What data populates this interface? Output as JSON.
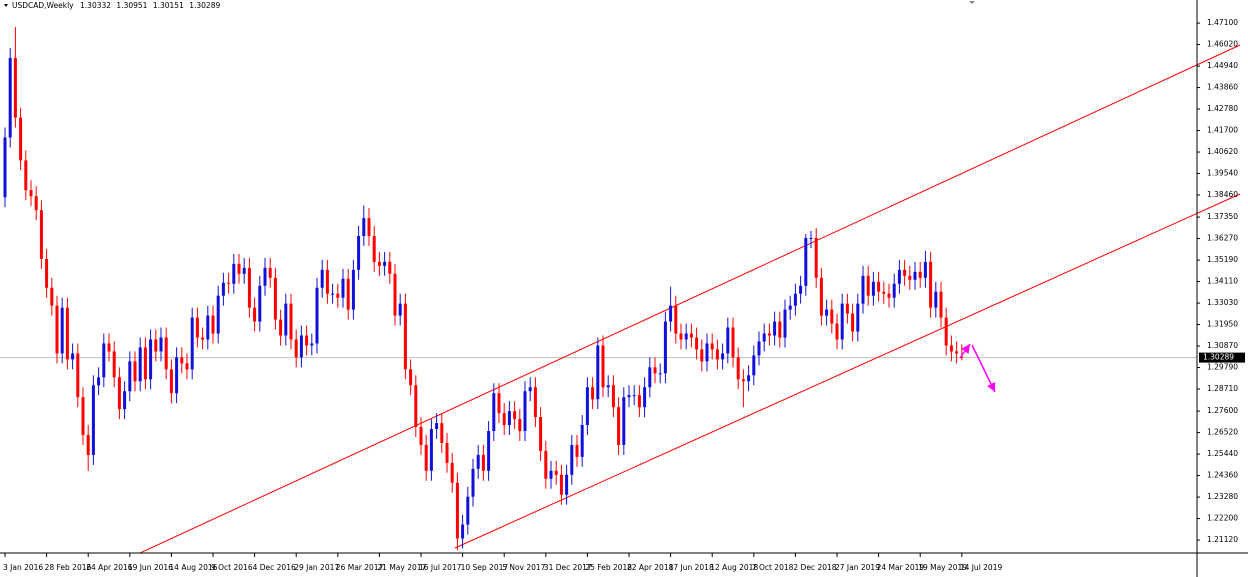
{
  "chart_data": {
    "type": "candlestick",
    "title": "USDCAD,Weekly",
    "up_color": "#1010d8",
    "down_color": "#ff0000",
    "ylim": [
      1.2052,
      1.4816
    ],
    "yticks": [
      {
        "value": 1.471,
        "label": "1.47100"
      },
      {
        "value": 1.4602,
        "label": "1.46020"
      },
      {
        "value": 1.4494,
        "label": "1.44940"
      },
      {
        "value": 1.4386,
        "label": "1.43860"
      },
      {
        "value": 1.4278,
        "label": "1.42780"
      },
      {
        "value": 1.417,
        "label": "1.41700"
      },
      {
        "value": 1.4062,
        "label": "1.40620"
      },
      {
        "value": 1.3954,
        "label": "1.39540"
      },
      {
        "value": 1.3846,
        "label": "1.38460"
      },
      {
        "value": 1.3735,
        "label": "1.37350"
      },
      {
        "value": 1.3627,
        "label": "1.36270"
      },
      {
        "value": 1.3519,
        "label": "1.35190"
      },
      {
        "value": 1.3411,
        "label": "1.34110"
      },
      {
        "value": 1.3303,
        "label": "1.33030"
      },
      {
        "value": 1.3195,
        "label": "1.31950"
      },
      {
        "value": 1.3087,
        "label": "1.30870"
      },
      {
        "value": 1.2979,
        "label": "1.29790"
      },
      {
        "value": 1.2871,
        "label": "1.28710"
      },
      {
        "value": 1.276,
        "label": "1.27600"
      },
      {
        "value": 1.2652,
        "label": "1.26520"
      },
      {
        "value": 1.2544,
        "label": "1.25440"
      },
      {
        "value": 1.2436,
        "label": "1.24360"
      },
      {
        "value": 1.2328,
        "label": "1.23280"
      },
      {
        "value": 1.222,
        "label": "1.22200"
      },
      {
        "value": 1.2112,
        "label": "1.21120"
      }
    ],
    "categories": [
      "3 Jan 2016",
      null,
      null,
      null,
      null,
      null,
      null,
      null,
      "28 Feb 2016",
      null,
      null,
      null,
      null,
      null,
      null,
      null,
      "24 Apr 2016",
      null,
      null,
      null,
      null,
      null,
      null,
      null,
      "19 Jun 2016",
      null,
      null,
      null,
      null,
      null,
      null,
      null,
      "14 Aug 2016",
      null,
      null,
      null,
      null,
      null,
      null,
      null,
      "9 Oct 2016",
      null,
      null,
      null,
      null,
      null,
      null,
      null,
      "4 Dec 2016",
      null,
      null,
      null,
      null,
      null,
      null,
      null,
      "29 Jan 2017",
      null,
      null,
      null,
      null,
      null,
      null,
      null,
      "26 Mar 2017",
      null,
      null,
      null,
      null,
      null,
      null,
      null,
      "21 May 2017",
      null,
      null,
      null,
      null,
      null,
      null,
      null,
      "16 Jul 2017",
      null,
      null,
      null,
      null,
      null,
      null,
      null,
      "10 Sep 2017",
      null,
      null,
      null,
      null,
      null,
      null,
      null,
      "5 Nov 2017",
      null,
      null,
      null,
      null,
      null,
      null,
      null,
      "31 Dec 2017",
      null,
      null,
      null,
      null,
      null,
      null,
      null,
      "25 Feb 2018",
      null,
      null,
      null,
      null,
      null,
      null,
      null,
      "22 Apr 2018",
      null,
      null,
      null,
      null,
      null,
      null,
      null,
      "17 Jun 2018",
      null,
      null,
      null,
      null,
      null,
      null,
      null,
      "12 Aug 2018",
      null,
      null,
      null,
      null,
      null,
      null,
      null,
      "7 Oct 2018",
      null,
      null,
      null,
      null,
      null,
      null,
      null,
      "2 Dec 2018",
      null,
      null,
      null,
      null,
      null,
      null,
      null,
      "27 Jan 2019",
      null,
      null,
      null,
      null,
      null,
      null,
      null,
      "24 Mar 2019",
      null,
      null,
      null,
      null,
      null,
      null,
      null,
      "19 May 2019",
      null,
      null,
      null,
      null,
      null,
      null,
      null,
      "14 Jul 2019"
    ],
    "open": [
      1.3835,
      1.4135,
      1.4535,
      1.4235,
      1.402,
      1.387,
      1.384,
      1.377,
      1.3525,
      1.338,
      1.329,
      1.305,
      1.328,
      1.302,
      1.305,
      1.283,
      1.264,
      1.254,
      1.289,
      1.293,
      1.31,
      1.306,
      1.293,
      1.277,
      1.286,
      1.301,
      1.291,
      1.308,
      1.292,
      1.312,
      1.306,
      1.313,
      1.297,
      1.285,
      1.303,
      1.3,
      1.297,
      1.323,
      1.313,
      1.312,
      1.324,
      1.315,
      1.334,
      1.3405,
      1.34,
      1.35,
      1.345,
      1.348,
      1.328,
      1.321,
      1.339,
      1.348,
      1.343,
      1.322,
      1.314,
      1.33,
      1.312,
      1.303,
      1.314,
      1.309,
      1.31,
      1.338,
      1.347,
      1.335,
      1.335,
      1.333,
      1.3425,
      1.327,
      1.347,
      1.364,
      1.373,
      1.364,
      1.351,
      1.349,
      1.351,
      1.345,
      1.324,
      1.33,
      1.297,
      1.289,
      1.268,
      1.259,
      1.246,
      1.267,
      1.27,
      1.26,
      1.25,
      1.24,
      1.212,
      1.219,
      1.233,
      1.247,
      1.254,
      1.246,
      1.266,
      1.285,
      1.275,
      1.269,
      1.276,
      1.272,
      1.266,
      1.286,
      1.288,
      1.273,
      1.256,
      1.242,
      1.246,
      1.244,
      1.234,
      1.244,
      1.259,
      1.253,
      1.269,
      1.288,
      1.282,
      1.309,
      1.288,
      1.289,
      1.278,
      1.259,
      1.283,
      1.284,
      1.284,
      1.278,
      1.288,
      1.298,
      1.295,
      1.295,
      1.321,
      1.329,
      1.315,
      1.312,
      1.315,
      1.313,
      1.307,
      1.301,
      1.31,
      1.307,
      1.302,
      1.305,
      1.318,
      1.303,
      1.292,
      1.291,
      1.294,
      1.304,
      1.311,
      1.315,
      1.314,
      1.321,
      1.313,
      1.327,
      1.329,
      1.335,
      1.339,
      1.363,
      1.363,
      1.343,
      1.324,
      1.327,
      1.32,
      1.312,
      1.33,
      1.325,
      1.316,
      1.33,
      1.344,
      1.334,
      1.341,
      1.336,
      1.335,
      1.333,
      1.34,
      1.347,
      1.344,
      1.342,
      1.346,
      1.343,
      1.351,
      1.328,
      1.336,
      1.323,
      1.309,
      1.306,
      1.30332
    ],
    "high": [
      1.4185,
      1.4585,
      1.469,
      1.4285,
      1.407,
      1.392,
      1.389,
      1.382,
      1.3575,
      1.343,
      1.334,
      1.333,
      1.333,
      1.31,
      1.31,
      1.288,
      1.269,
      1.294,
      1.298,
      1.315,
      1.315,
      1.311,
      1.298,
      1.291,
      1.306,
      1.306,
      1.313,
      1.313,
      1.317,
      1.317,
      1.318,
      1.318,
      1.302,
      1.308,
      1.308,
      1.305,
      1.328,
      1.328,
      1.318,
      1.329,
      1.329,
      1.339,
      1.3455,
      1.3455,
      1.355,
      1.355,
      1.353,
      1.353,
      1.333,
      1.344,
      1.353,
      1.353,
      1.348,
      1.327,
      1.335,
      1.335,
      1.317,
      1.319,
      1.319,
      1.315,
      1.343,
      1.352,
      1.352,
      1.34,
      1.34,
      1.3475,
      1.3475,
      1.352,
      1.369,
      1.3793,
      1.378,
      1.369,
      1.356,
      1.356,
      1.356,
      1.35,
      1.335,
      1.335,
      1.302,
      1.294,
      1.273,
      1.264,
      1.272,
      1.275,
      1.275,
      1.265,
      1.255,
      1.245,
      1.224,
      1.238,
      1.252,
      1.259,
      1.259,
      1.271,
      1.29,
      1.29,
      1.28,
      1.281,
      1.281,
      1.277,
      1.291,
      1.293,
      1.293,
      1.278,
      1.261,
      1.251,
      1.251,
      1.249,
      1.249,
      1.264,
      1.264,
      1.274,
      1.293,
      1.293,
      1.313,
      1.314,
      1.294,
      1.294,
      1.283,
      1.288,
      1.289,
      1.289,
      1.289,
      1.293,
      1.303,
      1.303,
      1.3,
      1.326,
      1.3385,
      1.334,
      1.32,
      1.32,
      1.32,
      1.318,
      1.312,
      1.315,
      1.315,
      1.312,
      1.31,
      1.323,
      1.323,
      1.308,
      1.297,
      1.299,
      1.309,
      1.316,
      1.32,
      1.32,
      1.326,
      1.326,
      1.332,
      1.334,
      1.34,
      1.344,
      1.365,
      1.3665,
      1.368,
      1.348,
      1.332,
      1.332,
      1.325,
      1.335,
      1.335,
      1.33,
      1.335,
      1.349,
      1.349,
      1.346,
      1.346,
      1.341,
      1.34,
      1.345,
      1.352,
      1.352,
      1.349,
      1.351,
      1.351,
      1.3565,
      1.356,
      1.341,
      1.341,
      1.328,
      1.314,
      1.311,
      1.30951
    ],
    "low": [
      1.3785,
      1.4085,
      1.4185,
      1.397,
      1.382,
      1.379,
      1.372,
      1.3475,
      1.333,
      1.324,
      1.3,
      1.3,
      1.297,
      1.297,
      1.278,
      1.259,
      1.246,
      1.249,
      1.284,
      1.288,
      1.301,
      1.288,
      1.272,
      1.272,
      1.281,
      1.286,
      1.286,
      1.287,
      1.287,
      1.301,
      1.301,
      1.292,
      1.28,
      1.28,
      1.295,
      1.292,
      1.292,
      1.308,
      1.307,
      1.307,
      1.31,
      1.31,
      1.329,
      1.335,
      1.335,
      1.34,
      1.34,
      1.323,
      1.316,
      1.316,
      1.334,
      1.338,
      1.317,
      1.309,
      1.309,
      1.307,
      1.298,
      1.298,
      1.304,
      1.304,
      1.305,
      1.333,
      1.33,
      1.33,
      1.328,
      1.328,
      1.322,
      1.322,
      1.342,
      1.359,
      1.359,
      1.346,
      1.344,
      1.344,
      1.34,
      1.319,
      1.319,
      1.292,
      1.284,
      1.263,
      1.254,
      1.241,
      1.241,
      1.262,
      1.255,
      1.245,
      1.235,
      1.2061,
      1.207,
      1.214,
      1.228,
      1.242,
      1.241,
      1.241,
      1.261,
      1.27,
      1.264,
      1.264,
      1.267,
      1.261,
      1.261,
      1.281,
      1.268,
      1.251,
      1.237,
      1.237,
      1.239,
      1.229,
      1.229,
      1.239,
      1.248,
      1.248,
      1.264,
      1.277,
      1.277,
      1.283,
      1.283,
      1.273,
      1.254,
      1.254,
      1.278,
      1.279,
      1.273,
      1.273,
      1.283,
      1.29,
      1.29,
      1.29,
      1.316,
      1.31,
      1.307,
      1.307,
      1.308,
      1.302,
      1.296,
      1.296,
      1.302,
      1.297,
      1.297,
      1.3,
      1.298,
      1.287,
      1.278,
      1.286,
      1.289,
      1.299,
      1.306,
      1.309,
      1.309,
      1.308,
      1.308,
      1.322,
      1.324,
      1.33,
      1.334,
      1.358,
      1.338,
      1.319,
      1.319,
      1.315,
      1.307,
      1.307,
      1.32,
      1.311,
      1.311,
      1.325,
      1.329,
      1.329,
      1.331,
      1.33,
      1.328,
      1.328,
      1.335,
      1.339,
      1.337,
      1.337,
      1.338,
      1.338,
      1.323,
      1.323,
      1.318,
      1.304,
      1.301,
      1.3,
      1.30151
    ],
    "close": [
      1.4135,
      1.4535,
      1.4235,
      1.402,
      1.387,
      1.384,
      1.377,
      1.3525,
      1.338,
      1.329,
      1.305,
      1.328,
      1.302,
      1.305,
      1.283,
      1.264,
      1.254,
      1.289,
      1.293,
      1.31,
      1.306,
      1.293,
      1.277,
      1.286,
      1.301,
      1.291,
      1.308,
      1.292,
      1.312,
      1.306,
      1.313,
      1.297,
      1.285,
      1.303,
      1.3,
      1.297,
      1.323,
      1.313,
      1.312,
      1.324,
      1.315,
      1.334,
      1.3405,
      1.34,
      1.35,
      1.345,
      1.348,
      1.328,
      1.321,
      1.339,
      1.348,
      1.343,
      1.322,
      1.314,
      1.33,
      1.312,
      1.303,
      1.314,
      1.309,
      1.31,
      1.338,
      1.347,
      1.335,
      1.335,
      1.333,
      1.3425,
      1.327,
      1.347,
      1.364,
      1.373,
      1.364,
      1.351,
      1.349,
      1.351,
      1.345,
      1.324,
      1.33,
      1.297,
      1.289,
      1.268,
      1.259,
      1.246,
      1.267,
      1.27,
      1.26,
      1.25,
      1.24,
      1.212,
      1.219,
      1.233,
      1.247,
      1.254,
      1.246,
      1.266,
      1.285,
      1.275,
      1.269,
      1.276,
      1.272,
      1.266,
      1.286,
      1.288,
      1.273,
      1.256,
      1.242,
      1.246,
      1.244,
      1.234,
      1.244,
      1.259,
      1.253,
      1.269,
      1.288,
      1.282,
      1.309,
      1.288,
      1.289,
      1.278,
      1.259,
      1.283,
      1.284,
      1.284,
      1.278,
      1.288,
      1.298,
      1.295,
      1.295,
      1.321,
      1.329,
      1.315,
      1.312,
      1.315,
      1.313,
      1.307,
      1.301,
      1.31,
      1.307,
      1.302,
      1.305,
      1.318,
      1.303,
      1.292,
      1.291,
      1.294,
      1.304,
      1.311,
      1.315,
      1.314,
      1.321,
      1.313,
      1.327,
      1.329,
      1.335,
      1.339,
      1.363,
      1.363,
      1.343,
      1.324,
      1.327,
      1.32,
      1.312,
      1.33,
      1.325,
      1.316,
      1.33,
      1.344,
      1.334,
      1.341,
      1.336,
      1.335,
      1.333,
      1.34,
      1.347,
      1.344,
      1.342,
      1.346,
      1.343,
      1.351,
      1.328,
      1.336,
      1.323,
      1.309,
      1.306,
      1.305,
      1.30289
    ]
  }
}
